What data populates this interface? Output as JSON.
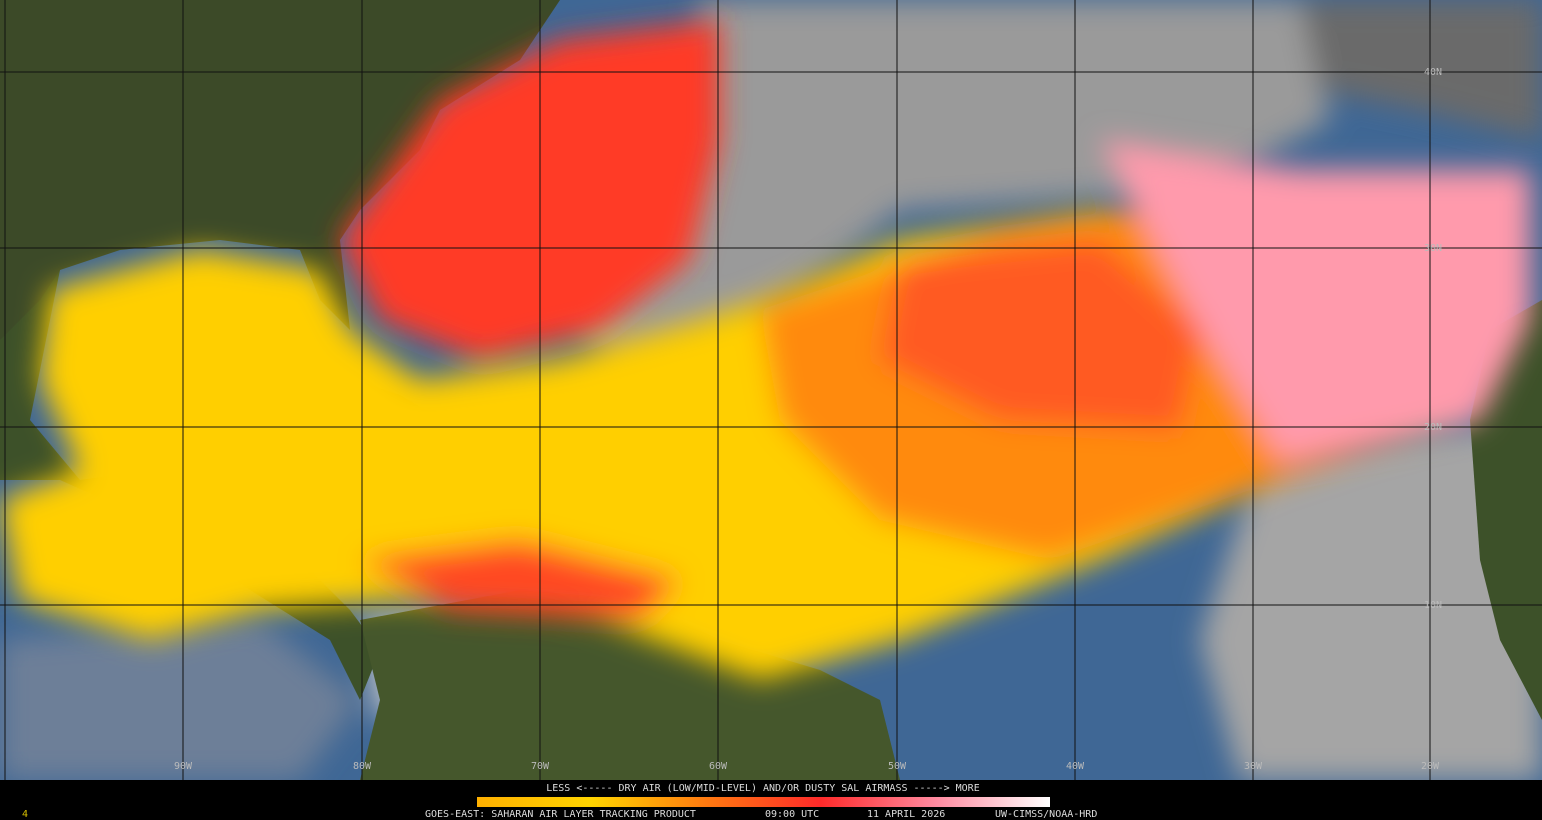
{
  "map": {
    "latitude_labels": [
      "40N",
      "30N",
      "20N",
      "10N"
    ],
    "longitude_labels": [
      "90W",
      "80W",
      "70W",
      "60W",
      "50W",
      "40W",
      "30W",
      "20W"
    ]
  },
  "legend": {
    "text": "LESS <----- DRY AIR (LOW/MID-LEVEL) AND/OR DUSTY SAL AIRMASS -----> MORE"
  },
  "footer": {
    "frame": "4",
    "product": "GOES-EAST: SAHARAN AIR LAYER TRACKING PRODUCT",
    "time": "09:00 UTC",
    "date": "11 APRIL 2026",
    "credit": "UW-CIMSS/NOAA-HRD"
  }
}
